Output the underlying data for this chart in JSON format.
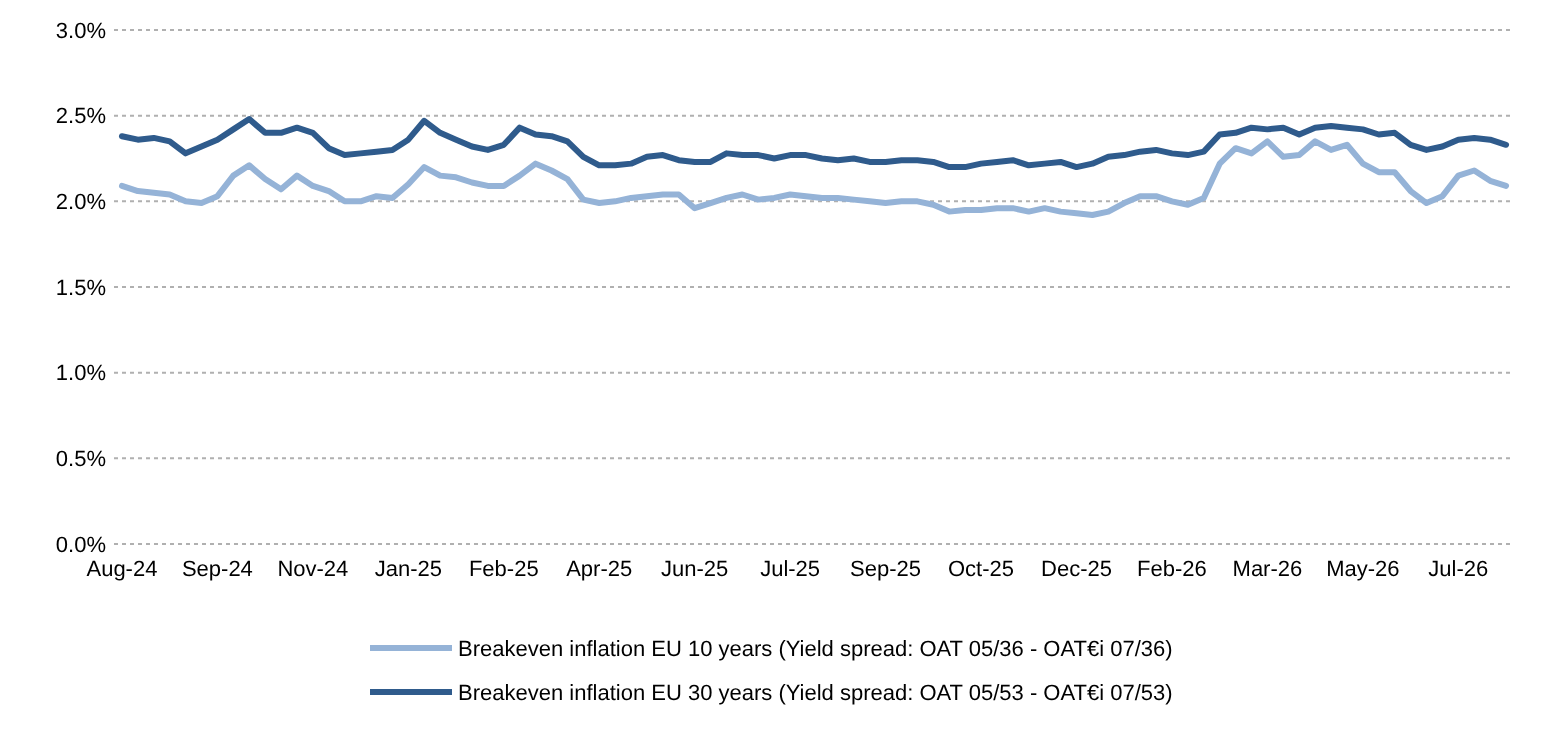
{
  "chart_data": {
    "type": "line",
    "categories": [
      "Aug-24",
      null,
      null,
      null,
      null,
      null,
      "Sep-24",
      null,
      null,
      null,
      null,
      null,
      "Nov-24",
      null,
      null,
      null,
      null,
      null,
      "Jan-25",
      null,
      null,
      null,
      null,
      null,
      "Feb-25",
      null,
      null,
      null,
      null,
      null,
      "Apr-25",
      null,
      null,
      null,
      null,
      null,
      "Jun-25",
      null,
      null,
      null,
      null,
      null,
      "Jul-25",
      null,
      null,
      null,
      null,
      null,
      "Sep-25",
      null,
      null,
      null,
      null,
      null,
      "Oct-25",
      null,
      null,
      null,
      null,
      null,
      "Dec-25",
      null,
      null,
      null,
      null,
      null,
      "Feb-26",
      null,
      null,
      null,
      null,
      null,
      "Mar-26",
      null,
      null,
      null,
      null,
      null,
      "May-26",
      null,
      null,
      null,
      null,
      null,
      "Jul-26",
      null,
      null,
      null
    ],
    "series": [
      {
        "name": "Breakeven inflation EU 10 years (Yield spread: OAT 05/36 - OAT€i  07/36)",
        "color": "#95b3d7",
        "values": [
          2.09,
          2.06,
          2.05,
          2.04,
          2.0,
          1.99,
          2.03,
          2.15,
          2.21,
          2.13,
          2.07,
          2.15,
          2.09,
          2.06,
          2.0,
          2.0,
          2.03,
          2.02,
          2.1,
          2.2,
          2.15,
          2.14,
          2.11,
          2.09,
          2.09,
          2.15,
          2.22,
          2.18,
          2.13,
          2.01,
          1.99,
          2.0,
          2.02,
          2.03,
          2.04,
          2.04,
          1.96,
          1.99,
          2.02,
          2.04,
          2.01,
          2.02,
          2.04,
          2.03,
          2.02,
          2.02,
          2.01,
          2.0,
          1.99,
          2.0,
          2.0,
          1.98,
          1.94,
          1.95,
          1.95,
          1.96,
          1.96,
          1.94,
          1.96,
          1.94,
          1.93,
          1.92,
          1.94,
          1.99,
          2.03,
          2.03,
          2.0,
          1.98,
          2.02,
          2.22,
          2.31,
          2.28,
          2.35,
          2.26,
          2.27,
          2.35,
          2.3,
          2.33,
          2.22,
          2.17,
          2.17,
          2.06,
          1.99,
          2.03,
          2.15,
          2.18,
          2.12,
          2.09
        ]
      },
      {
        "name": "Breakeven inflation EU 30 years (Yield spread: OAT 05/53 - OAT€i  07/53)",
        "color": "#2f5b8c",
        "values": [
          2.38,
          2.36,
          2.37,
          2.35,
          2.28,
          2.32,
          2.36,
          2.42,
          2.48,
          2.4,
          2.4,
          2.43,
          2.4,
          2.31,
          2.27,
          2.28,
          2.29,
          2.3,
          2.36,
          2.47,
          2.4,
          2.36,
          2.32,
          2.3,
          2.33,
          2.43,
          2.39,
          2.38,
          2.35,
          2.26,
          2.21,
          2.21,
          2.22,
          2.26,
          2.27,
          2.24,
          2.23,
          2.23,
          2.28,
          2.27,
          2.27,
          2.25,
          2.27,
          2.27,
          2.25,
          2.24,
          2.25,
          2.23,
          2.23,
          2.24,
          2.24,
          2.23,
          2.2,
          2.2,
          2.22,
          2.23,
          2.24,
          2.21,
          2.22,
          2.23,
          2.2,
          2.22,
          2.26,
          2.27,
          2.29,
          2.3,
          2.28,
          2.27,
          2.29,
          2.39,
          2.4,
          2.43,
          2.42,
          2.43,
          2.39,
          2.43,
          2.44,
          2.43,
          2.42,
          2.39,
          2.4,
          2.33,
          2.3,
          2.32,
          2.36,
          2.37,
          2.36,
          2.33
        ]
      }
    ],
    "ylim": [
      0,
      3
    ],
    "yticks": [
      {
        "value": 0,
        "label": "0.0%"
      },
      {
        "value": 0.5,
        "label": "0.5%"
      },
      {
        "value": 1,
        "label": "1.0%"
      },
      {
        "value": 1.5,
        "label": "1.5%"
      },
      {
        "value": 2,
        "label": "2.0%"
      },
      {
        "value": 2.5,
        "label": "2.5%"
      },
      {
        "value": 3,
        "label": "3.0%"
      }
    ],
    "grid": "y",
    "legend": "bottom"
  }
}
